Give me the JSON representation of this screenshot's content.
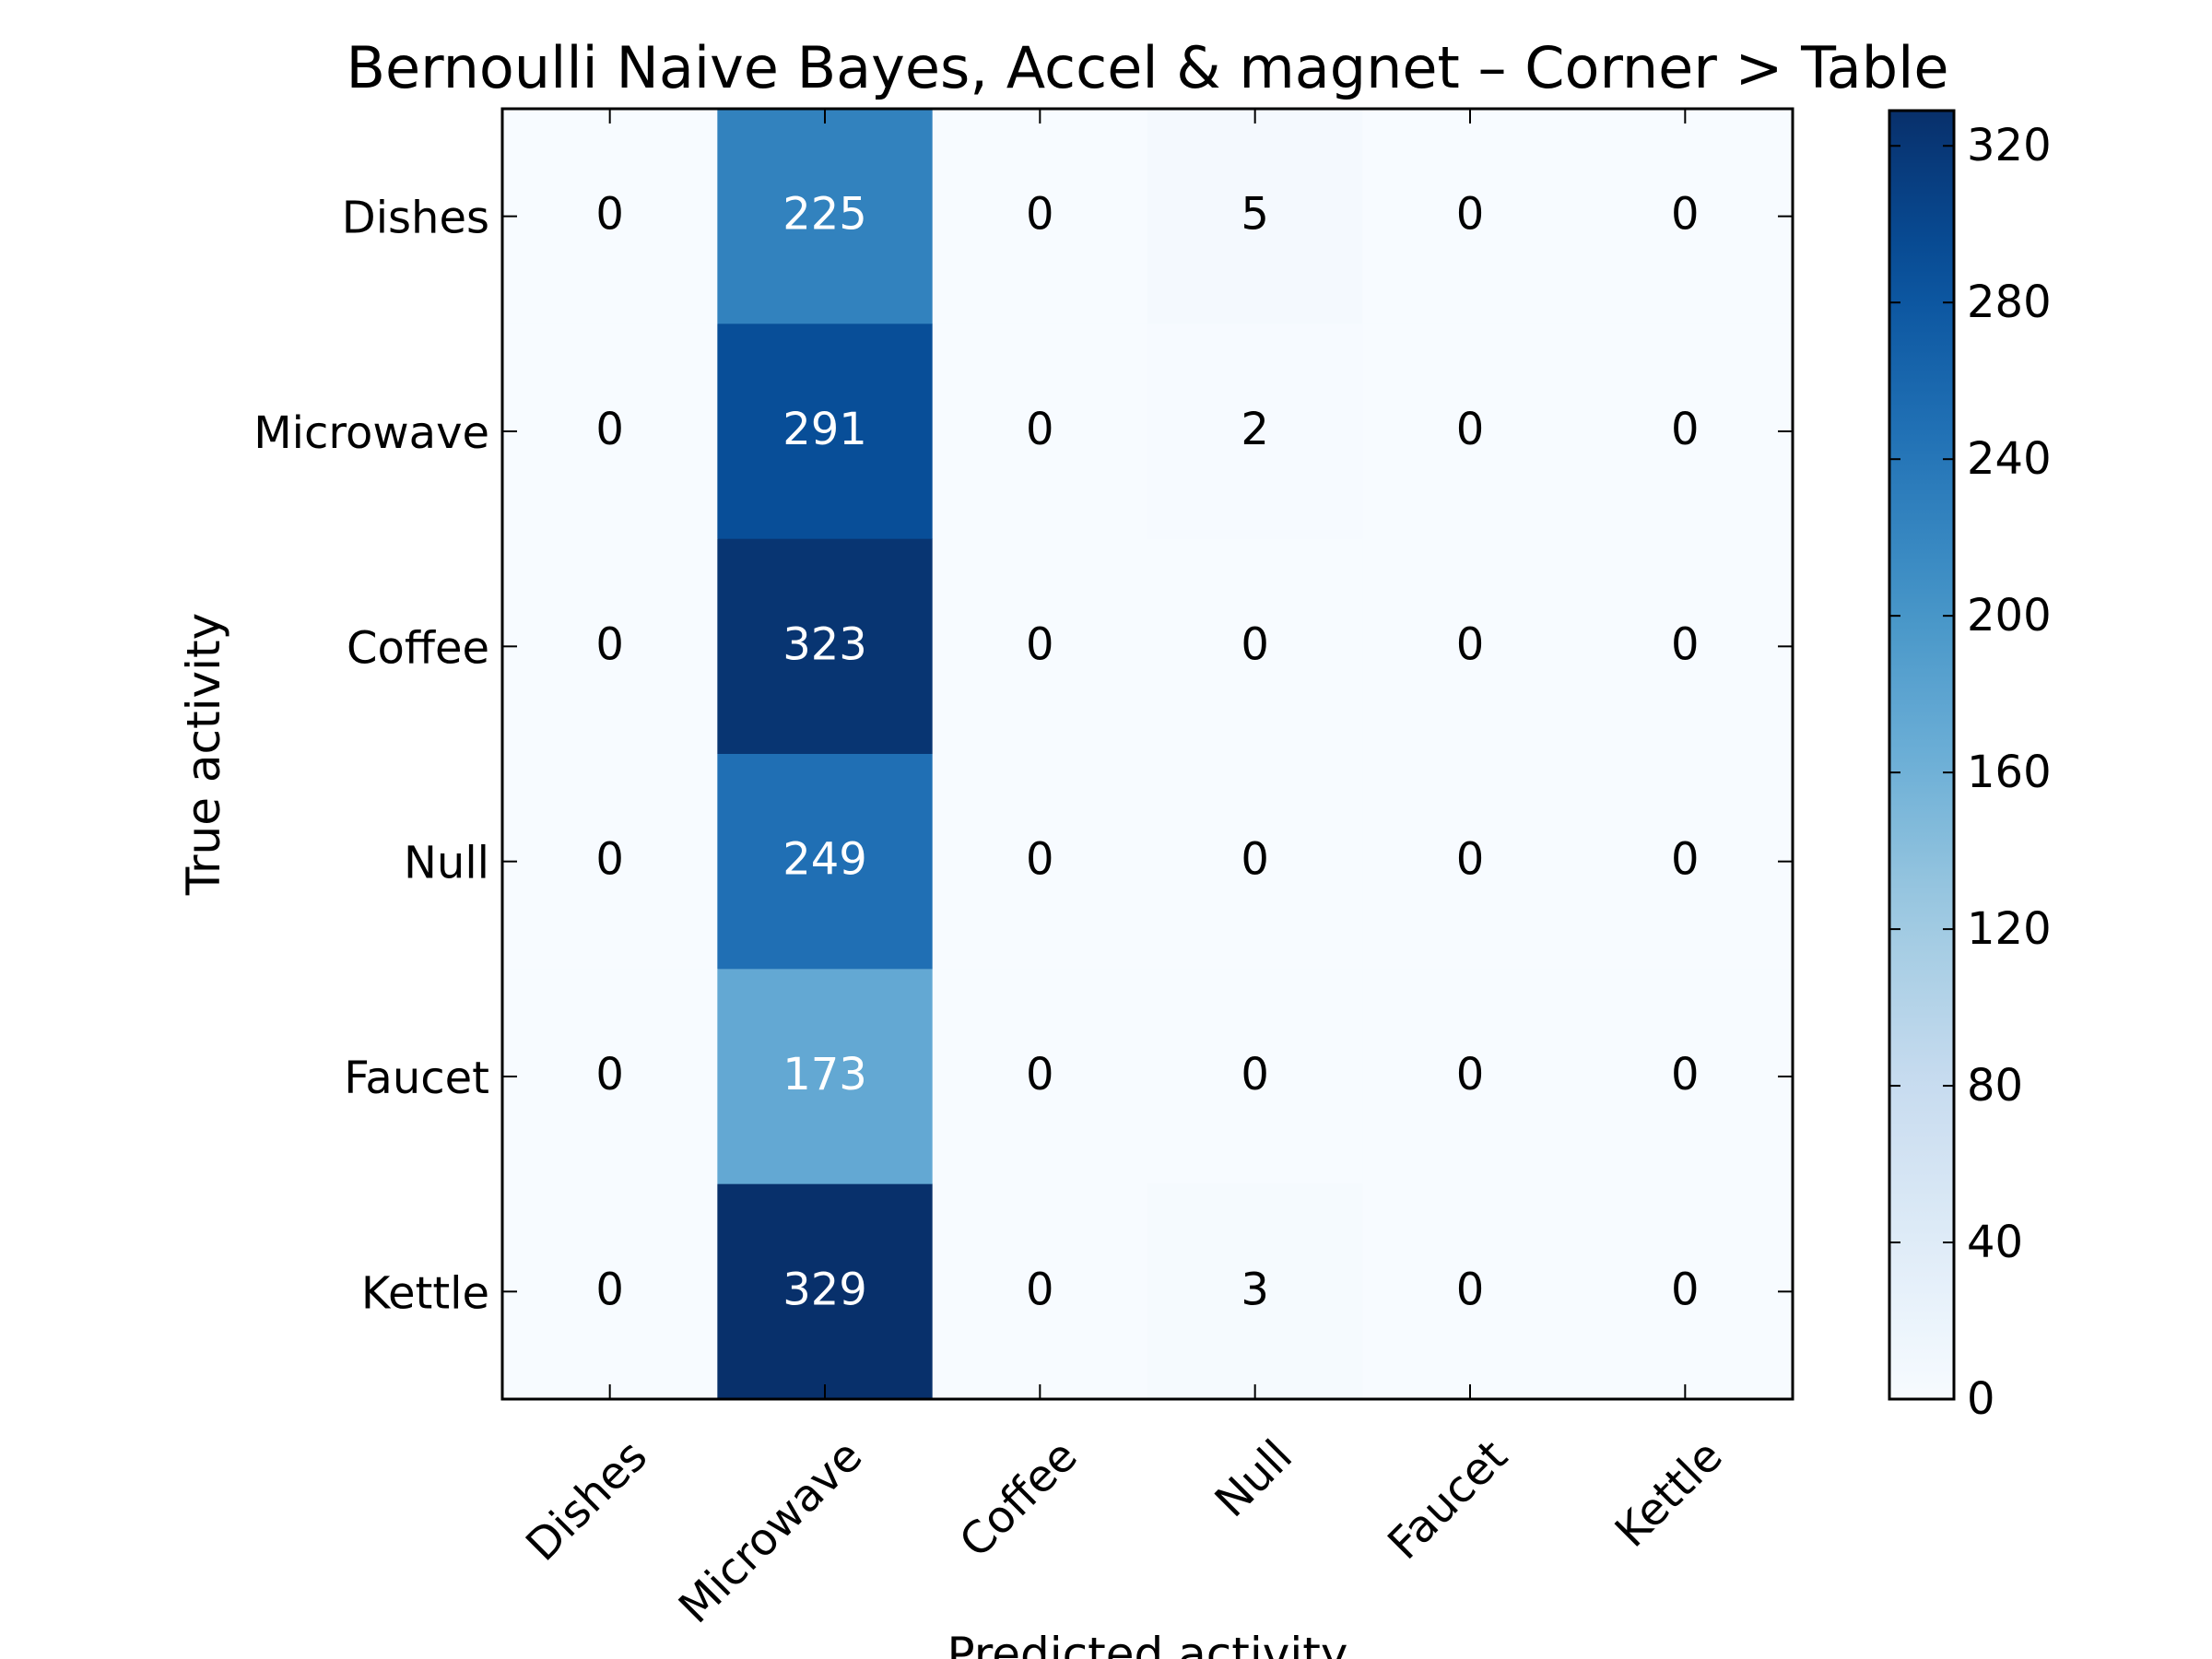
{
  "chart_data": {
    "type": "heatmap",
    "title": "Bernoulli Naive Bayes, Accel & magnet – Corner > Table",
    "xlabel": "Predicted activity",
    "ylabel": "True activity",
    "x_categories": [
      "Dishes",
      "Microwave",
      "Coffee",
      "Null",
      "Faucet",
      "Kettle"
    ],
    "y_categories": [
      "Dishes",
      "Microwave",
      "Coffee",
      "Null",
      "Faucet",
      "Kettle"
    ],
    "values": [
      [
        0,
        225,
        0,
        5,
        0,
        0
      ],
      [
        0,
        291,
        0,
        2,
        0,
        0
      ],
      [
        0,
        323,
        0,
        0,
        0,
        0
      ],
      [
        0,
        249,
        0,
        0,
        0,
        0
      ],
      [
        0,
        173,
        0,
        0,
        0,
        0
      ],
      [
        0,
        329,
        0,
        3,
        0,
        0
      ]
    ],
    "colormap": "Blues",
    "colorbar": {
      "range": [
        0,
        329
      ],
      "ticks": [
        0,
        40,
        80,
        120,
        160,
        200,
        240,
        280,
        320
      ]
    },
    "colors": {
      "low": "#f7fbff",
      "high": "#08306b",
      "text_light": "#ffffff",
      "text_dark": "#000000"
    }
  }
}
